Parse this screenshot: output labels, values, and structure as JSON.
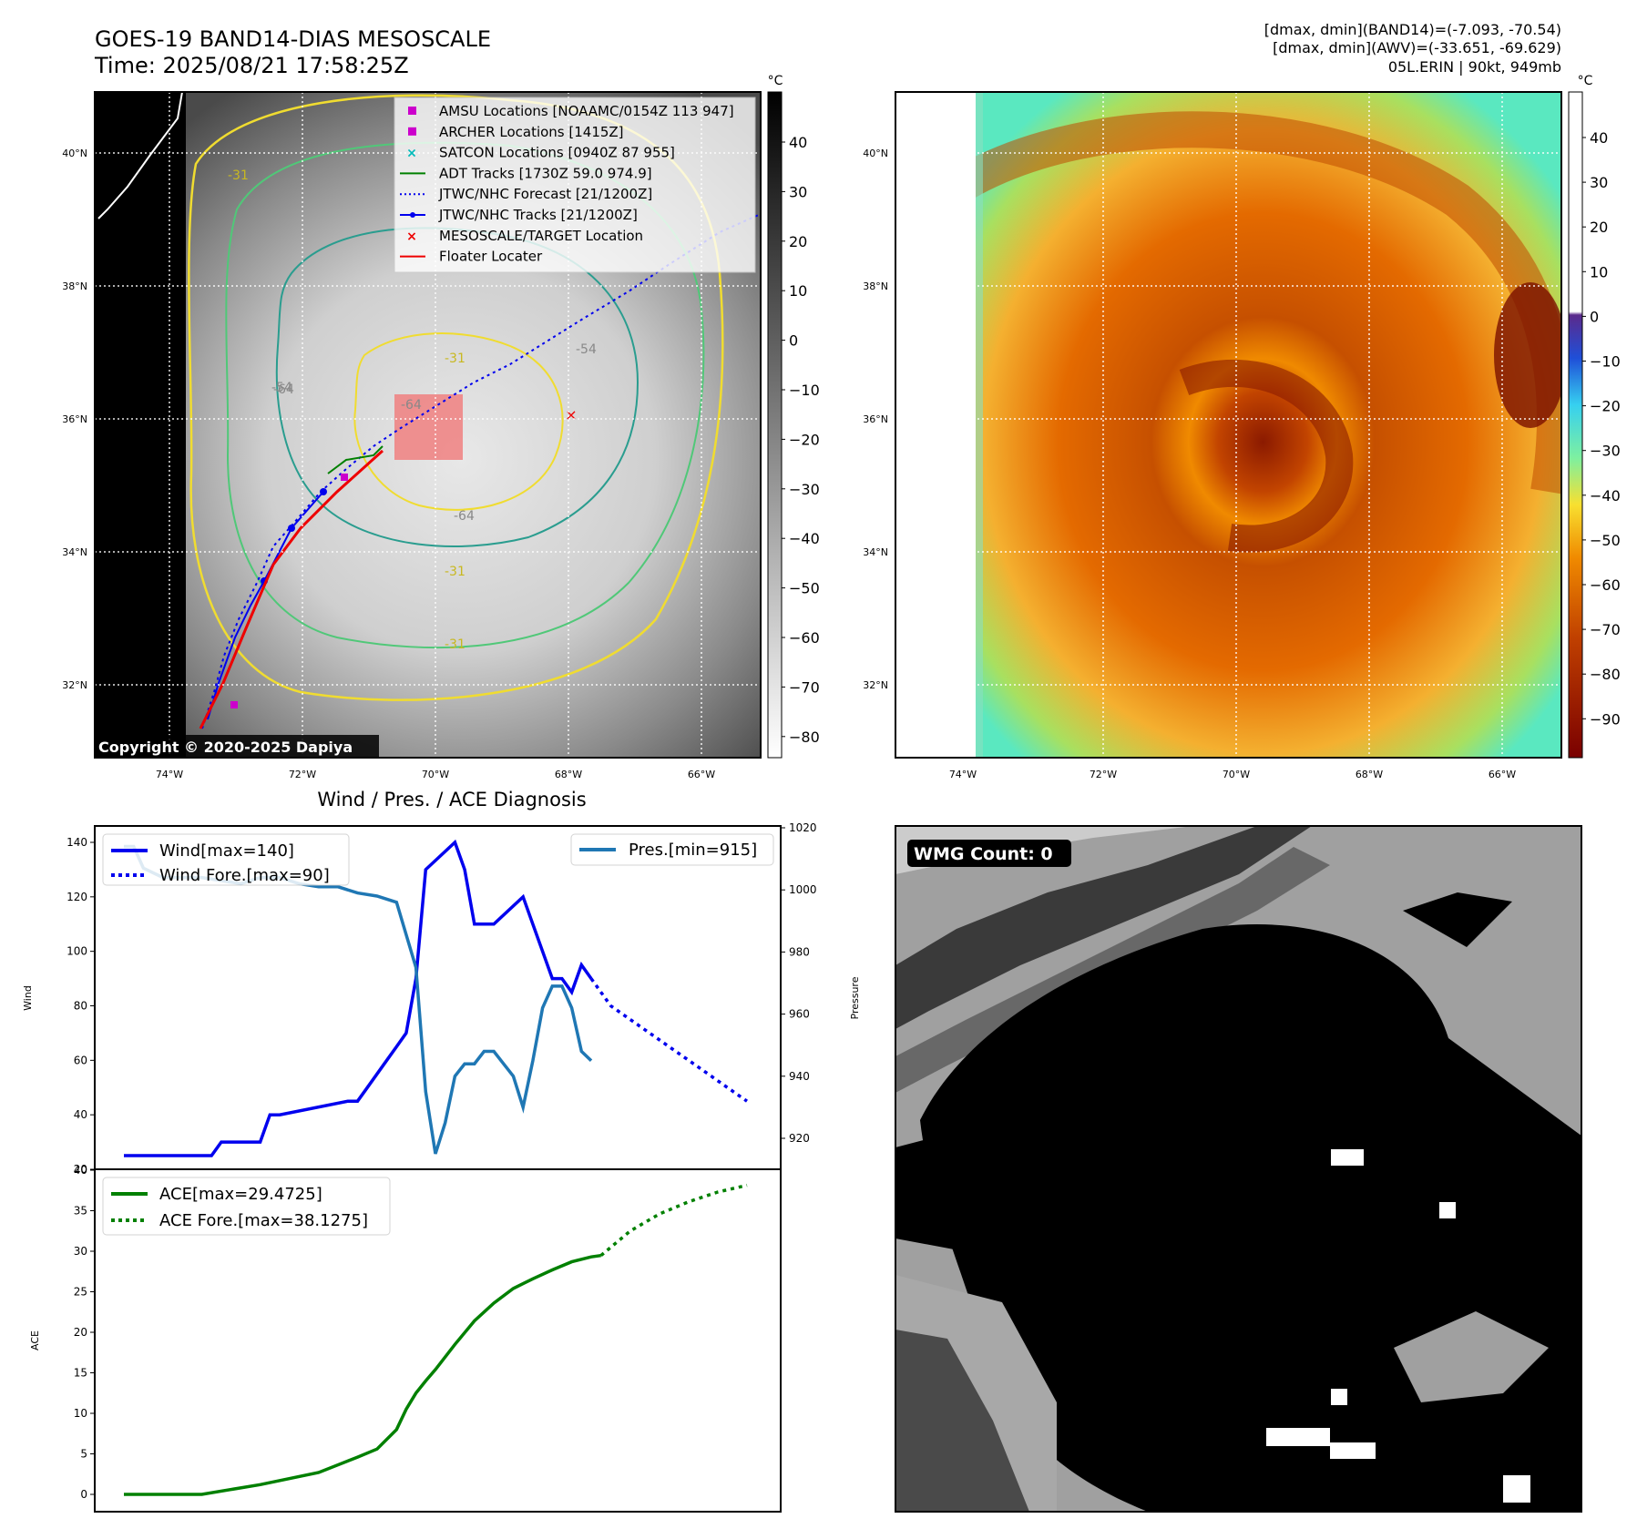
{
  "header": {
    "title_line1": "GOES-19 BAND14-DIAS MESOSCALE",
    "title_line2": "Time: 2025/08/21 17:58:25Z",
    "dmax_line1": "[dmax, dmin](BAND14)=(-7.093, -70.54)",
    "dmax_line2": "[dmax, dmin](AWV)=(-33.651, -69.629)",
    "storm_line": "05L.ERIN | 90kt, 949mb"
  },
  "map": {
    "lat_labels": [
      "40°N",
      "38°N",
      "36°N",
      "34°N",
      "32°N"
    ],
    "lon_labels": [
      "74°W",
      "72°W",
      "70°W",
      "68°W",
      "66°W"
    ],
    "contour_labels": [
      "-31",
      "-54",
      "-64",
      "-31",
      "-64",
      "-64",
      "-54",
      "-31",
      "-31"
    ],
    "copyright": "Copyright © 2020-2025 Dapiya",
    "legend": [
      {
        "label": "AMSU Locations [NOAAMC/0154Z 113 947]",
        "color": "#cc00cc",
        "kind": "square"
      },
      {
        "label": "ARCHER Locations [1415Z]",
        "color": "#cc00cc",
        "kind": "square"
      },
      {
        "label": "SATCON Locations [0940Z 87 955]",
        "color": "#00bbbb",
        "kind": "x"
      },
      {
        "label": "ADT Tracks [1730Z 59.0 974.9]",
        "color": "#008000",
        "kind": "line"
      },
      {
        "label": "JTWC/NHC Forecast [21/1200Z]",
        "color": "#0000ee",
        "kind": "dotted"
      },
      {
        "label": "JTWC/NHC Tracks [21/1200Z]",
        "color": "#0000ee",
        "kind": "linedot"
      },
      {
        "label": "MESOSCALE/TARGET Location",
        "color": "#ee0000",
        "kind": "x"
      },
      {
        "label": "Floater Locater",
        "color": "#ee0000",
        "kind": "line"
      }
    ]
  },
  "colorbars": {
    "unit": "°C",
    "gray_ticks": [
      "40",
      "30",
      "20",
      "10",
      "0",
      "−10",
      "−20",
      "−30",
      "−40",
      "−50",
      "−60",
      "−70",
      "−80"
    ],
    "awv_ticks": [
      "40",
      "30",
      "20",
      "10",
      "0",
      "−10",
      "−20",
      "−30",
      "−40",
      "−50",
      "−60",
      "−70",
      "−80",
      "−90"
    ]
  },
  "wmg": {
    "label": "WMG Count: 0"
  },
  "chart_data": [
    {
      "type": "line",
      "title": "Wind / Pres. / ACE Diagnosis",
      "ylabel": "Wind",
      "ylim": [
        20,
        145
      ],
      "yticks": [
        "140",
        "120",
        "100",
        "80",
        "60",
        "40",
        "20"
      ],
      "y2label": "Pressure",
      "y2lim": [
        910,
        1020
      ],
      "y2ticks": [
        "1020",
        "1000",
        "980",
        "960",
        "940",
        "920"
      ],
      "series": [
        {
          "name": "Wind[max=140]",
          "color": "#0000ee",
          "style": "solid",
          "x": [
            0,
            9,
            10,
            14,
            15,
            16,
            23,
            24,
            25,
            27,
            28,
            29,
            30,
            31,
            34,
            35,
            36,
            37,
            38,
            41,
            42,
            43,
            44,
            45,
            46,
            47,
            48
          ],
          "values": [
            25,
            25,
            30,
            30,
            40,
            40,
            45,
            45,
            50,
            60,
            65,
            70,
            90,
            130,
            140,
            130,
            110,
            110,
            110,
            120,
            110,
            100,
            90,
            90,
            85,
            95,
            90
          ]
        },
        {
          "name": "Wind Fore.[max=90]",
          "color": "#0000ee",
          "style": "dotted",
          "x": [
            48,
            50,
            52,
            54,
            56,
            58,
            60,
            62,
            64
          ],
          "values": [
            90,
            80,
            75,
            70,
            65,
            60,
            55,
            50,
            45
          ]
        },
        {
          "name": "Pres.[min=915]",
          "color": "#1f77b4",
          "style": "solid",
          "axis": "y2",
          "x": [
            0,
            1,
            2,
            4,
            6,
            8,
            10,
            12,
            14,
            16,
            18,
            20,
            22,
            24,
            26,
            28,
            30,
            31,
            32,
            33,
            34,
            35,
            36,
            37,
            38,
            39,
            40,
            41,
            42,
            43,
            44,
            45,
            46,
            47,
            48
          ],
          "values": [
            1014,
            1014,
            1007,
            1004,
            1004,
            1004,
            1003,
            1002,
            1004,
            1004,
            1002,
            1001,
            1001,
            999,
            998,
            996,
            975,
            935,
            915,
            925,
            940,
            944,
            944,
            948,
            948,
            944,
            940,
            930,
            945,
            962,
            969,
            969,
            962,
            948,
            945
          ]
        }
      ]
    },
    {
      "type": "line",
      "ylabel": "ACE",
      "ylim": [
        0,
        40
      ],
      "yticks": [
        "40",
        "35",
        "30",
        "25",
        "20",
        "15",
        "10",
        "5",
        "0"
      ],
      "series": [
        {
          "name": "ACE[max=29.4725]",
          "color": "#008000",
          "style": "solid",
          "x": [
            0,
            8,
            14,
            20,
            24,
            26,
            28,
            29,
            30,
            31,
            32,
            34,
            36,
            38,
            40,
            41,
            42,
            44,
            46,
            48,
            49
          ],
          "values": [
            0,
            0,
            1.2,
            2.7,
            4.6,
            5.6,
            8.0,
            10.5,
            12.5,
            14.0,
            15.4,
            18.5,
            21.4,
            23.6,
            25.4,
            26.0,
            26.6,
            27.7,
            28.7,
            29.3,
            29.47
          ]
        },
        {
          "name": "ACE Fore.[max=38.1275]",
          "color": "#008000",
          "style": "dotted",
          "x": [
            49,
            52,
            55,
            58,
            61,
            64
          ],
          "values": [
            29.47,
            32.5,
            34.6,
            36.1,
            37.3,
            38.13
          ]
        }
      ]
    }
  ]
}
